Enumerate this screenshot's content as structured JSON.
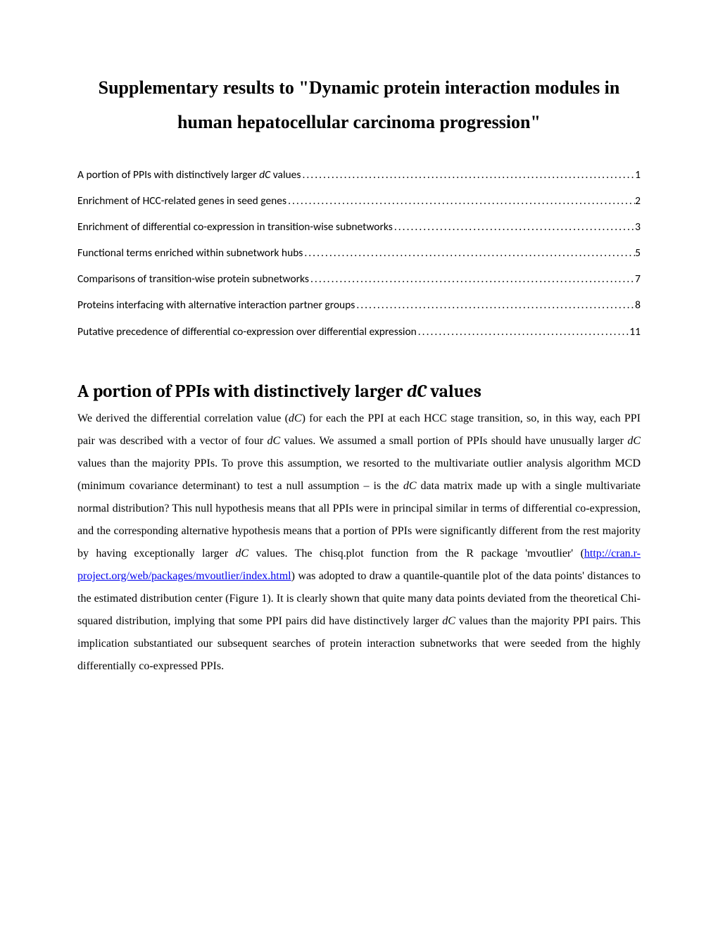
{
  "title_line1": "Supplementary results to \"Dynamic protein interaction modules in",
  "title_line2": "human hepatocellular carcinoma progression\"",
  "toc": [
    {
      "label_pre": "A portion of PPIs with distinctively larger ",
      "label_italic": "dC",
      "label_post": " values",
      "page": "1"
    },
    {
      "label_pre": "Enrichment of HCC-related genes in seed genes",
      "label_italic": "",
      "label_post": "",
      "page": "2"
    },
    {
      "label_pre": "Enrichment of differential co-expression in transition-wise subnetworks",
      "label_italic": "",
      "label_post": "",
      "page": "3"
    },
    {
      "label_pre": "Functional terms enriched within subnetwork hubs",
      "label_italic": "",
      "label_post": "",
      "page": "5"
    },
    {
      "label_pre": "Comparisons of transition-wise protein subnetworks",
      "label_italic": "",
      "label_post": "",
      "page": "7"
    },
    {
      "label_pre": "Proteins interfacing with alternative interaction partner groups",
      "label_italic": "",
      "label_post": "",
      "page": "8"
    },
    {
      "label_pre": "Putative precedence of differential co-expression over differential expression",
      "label_italic": "",
      "label_post": "",
      "page": "11"
    }
  ],
  "section_heading_pre": "A portion of PPIs with distinctively larger ",
  "section_heading_italic": "dC",
  "section_heading_post": " values",
  "body": {
    "p1_a": "We derived the differential correlation value (",
    "p1_dc1": "dC",
    "p1_b": ") for each the PPI at each HCC stage transition, so, in this way, each PPI pair was described with a vector of four ",
    "p1_dc2": "dC",
    "p1_c": " values. We assumed a small portion of PPIs should have unusually larger ",
    "p1_dc3": "dC",
    "p1_d": " values than the majority PPIs. To prove this assumption, we resorted to the multivariate outlier analysis algorithm MCD (minimum covariance determinant) to test a null assumption – is the ",
    "p1_dc4": "dC",
    "p1_e": " data matrix made up with a single multivariate normal distribution? This null hypothesis means that all PPIs were in principal similar in terms of differential co-expression, and the corresponding alternative hypothesis means that a portion of PPIs were significantly different from the rest majority by having exceptionally larger ",
    "p1_dc5": "dC",
    "p1_f": " values. The chisq.plot function  from the R package 'mvoutlier' (",
    "p1_link": "http://cran.r-project.org/web/packages/mvoutlier/index.html",
    "p1_g": ") was adopted to draw a quantile-quantile plot of the data points' distances to the estimated distribution center (Figure 1). It is clearly shown that quite many data points deviated from the theoretical Chi-squared distribution, implying that some PPI pairs did have distinctively larger ",
    "p1_dc6": "dC",
    "p1_h": " values than the majority PPI pairs. This implication substantiated our subsequent searches of protein interaction subnetworks that were seeded from the highly differentially co-expressed PPIs."
  },
  "colors": {
    "text": "#000000",
    "link": "#0000ee",
    "background": "#ffffff"
  },
  "typography": {
    "title_fontsize": 26,
    "toc_fontsize": 15.5,
    "heading_fontsize": 25,
    "body_fontsize": 16,
    "body_line_height": 2.0,
    "title_font": "Times New Roman",
    "toc_font": "Calibri",
    "heading_font": "Cambria",
    "body_font": "Times New Roman"
  }
}
